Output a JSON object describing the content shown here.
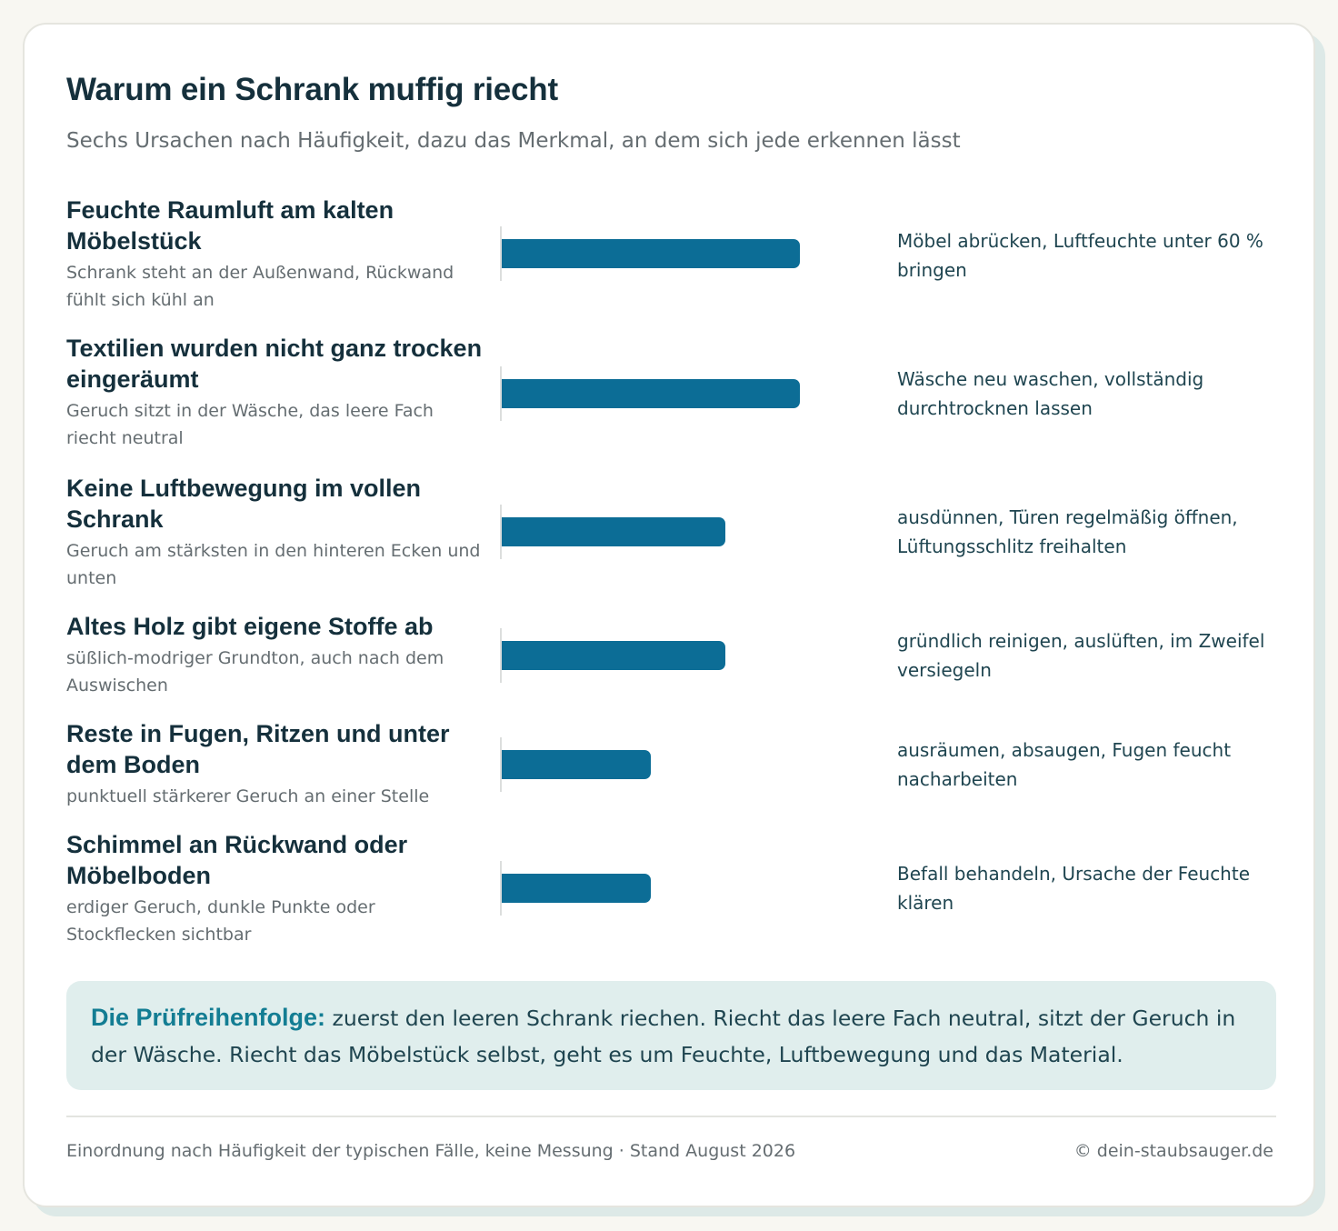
{
  "title": "Warum ein Schrank muffig riecht",
  "subtitle": "Sechs Ursachen nach Häufigkeit, dazu das Merkmal, an dem sich jede erkennen lässt",
  "chart_data": {
    "type": "bar",
    "orientation": "horizontal",
    "value_scale": "relative frequency (unlabeled)",
    "categories": [
      "Feuchte Raumluft am kalten Möbelstück",
      "Textilien wurden nicht ganz trocken eingeräumt",
      "Keine Luftbewegung im vollen Schrank",
      "Altes Holz gibt eigene Stoffe ab",
      "Reste in Fugen, Ritzen und unter dem Boden",
      "Schimmel an Rückwand oder Möbelboden"
    ],
    "values": [
      4,
      4,
      3,
      3,
      2,
      2
    ],
    "xlim": [
      0,
      5
    ],
    "grid": false,
    "legend": "none"
  },
  "rows": [
    {
      "cause": "Feuchte Raumluft am kalten Möbelstück",
      "sign": "Schrank steht an der Außenwand, Rückwand fühlt sich kühl an",
      "action": "Möbel abrücken, Luftfeuchte unter 60 % bringen"
    },
    {
      "cause": "Textilien wurden nicht ganz trocken eingeräumt",
      "sign": "Geruch sitzt in der Wäsche, das leere Fach riecht neutral",
      "action": "Wäsche neu waschen, vollständig durchtrocknen lassen"
    },
    {
      "cause": "Keine Luftbewegung im vollen Schrank",
      "sign": "Geruch am stärksten in den hinteren Ecken und unten",
      "action": "ausdünnen, Türen regelmäßig öffnen, Lüftungsschlitz freihalten"
    },
    {
      "cause": "Altes Holz gibt eigene Stoffe ab",
      "sign": "süßlich-modriger Grundton, auch nach dem Auswischen",
      "action": "gründlich reinigen, auslüften, im Zweifel versiegeln"
    },
    {
      "cause": "Reste in Fugen, Ritzen und unter dem Boden",
      "sign": "punktuell stärkerer Geruch an einer Stelle",
      "action": "ausräumen, absaugen, Fugen feucht nacharbeiten"
    },
    {
      "cause": "Schimmel an Rückwand oder Möbelboden",
      "sign": "erdiger Geruch, dunkle Punkte oder Stockflecken sichtbar",
      "action": "Befall behandeln, Ursache der Feuchte klären"
    }
  ],
  "note": {
    "label": "Die Prüfreihenfolge:",
    "text": "zuerst den leeren Schrank riechen. Riecht das leere Fach neutral, sitzt der Geruch in der Wäsche. Riecht das Möbelstück selbst, geht es um Feuchte, Luftbewegung und das Material."
  },
  "footer": {
    "source": "Einordnung nach Häufigkeit der typischen Fälle, keine Messung · Stand August 2026",
    "copyright": "© dein-staubsauger.de"
  },
  "colors": {
    "bar": "#0c6d96",
    "title": "#15303c",
    "note_background": "#e0eeed",
    "note_label": "#137d93"
  }
}
